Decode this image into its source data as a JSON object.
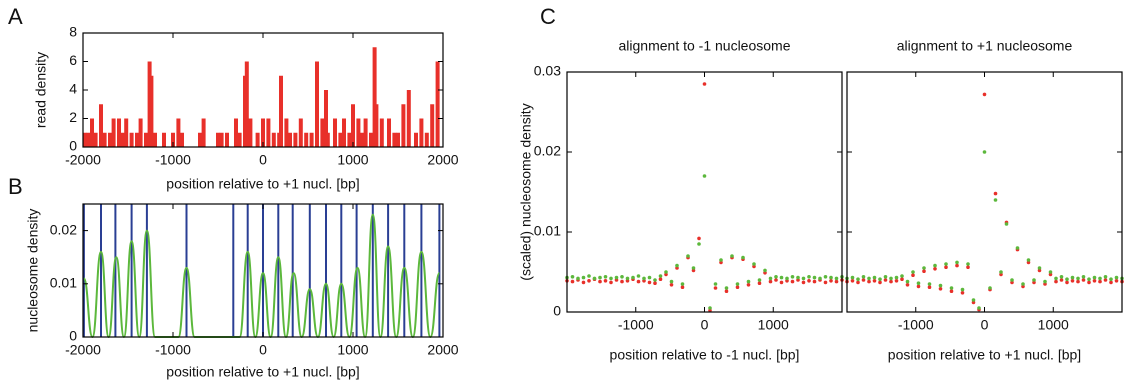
{
  "chart_data": [
    {
      "panel_label": "A",
      "type": "bar",
      "color": "#e8302a",
      "x": [
        -1980,
        -1940,
        -1900,
        -1860,
        -1800,
        -1760,
        -1700,
        -1660,
        -1600,
        -1560,
        -1520,
        -1460,
        -1400,
        -1360,
        -1300,
        -1260,
        -1240,
        -1200,
        -1100,
        -1000,
        -940,
        -900,
        -700,
        -660,
        -500,
        -460,
        -400,
        -300,
        -260,
        -200,
        -180,
        -140,
        -60,
        0,
        60,
        120,
        180,
        200,
        260,
        300,
        360,
        420,
        480,
        540,
        600,
        660,
        700,
        720,
        800,
        860,
        900,
        960,
        1000,
        1060,
        1100,
        1140,
        1200,
        1240,
        1260,
        1320,
        1400,
        1460,
        1500,
        1560,
        1620,
        1700,
        1760,
        1820,
        1880,
        1940
      ],
      "values": [
        1,
        1,
        2,
        1,
        3,
        1,
        1,
        2,
        2,
        1,
        2,
        1,
        1,
        2,
        1,
        6,
        5,
        1,
        1,
        1,
        2,
        1,
        1,
        2,
        1,
        1,
        1,
        2,
        1,
        5,
        6,
        2,
        1,
        2,
        2,
        1,
        1,
        5,
        2,
        1,
        1,
        2,
        1,
        1,
        6,
        2,
        4,
        1,
        2,
        1,
        2,
        1,
        3,
        2,
        1,
        2,
        1,
        7,
        3,
        2,
        2,
        1,
        1,
        3,
        4,
        1,
        2,
        1,
        3,
        6
      ],
      "xlim": [
        -2000,
        2000
      ],
      "xticks": [
        -2000,
        -1000,
        0,
        1000,
        2000
      ],
      "ylim": [
        0,
        8
      ],
      "yticks": [
        0,
        2,
        4,
        6,
        8
      ],
      "xlabel": "position relative to +1 nucl. [bp]",
      "ylabel": "read density"
    },
    {
      "panel_label": "B",
      "type": "line",
      "lines": {
        "color": "#2a3f94",
        "x": [
          -1990,
          -1800,
          -1640,
          -1460,
          -1290,
          -850,
          -330,
          -170,
          0,
          170,
          330,
          520,
          700,
          870,
          1040,
          1220,
          1390,
          1570,
          1760,
          1960
        ]
      },
      "curve": {
        "color": "#5cb83c",
        "x": [
          -1990,
          -1895,
          -1800,
          -1715,
          -1630,
          -1545,
          -1460,
          -1375,
          -1290,
          -1200,
          -940,
          -850,
          -760,
          -260,
          -170,
          -85,
          0,
          85,
          170,
          255,
          340,
          430,
          520,
          610,
          700,
          785,
          870,
          960,
          1050,
          1135,
          1220,
          1305,
          1390,
          1480,
          1570,
          1665,
          1760,
          1860,
          1960
        ],
        "values": [
          0.011,
          0,
          0.016,
          0,
          0.015,
          0,
          0.018,
          0,
          0.02,
          0,
          0,
          0.013,
          0,
          0,
          0.016,
          0,
          0.012,
          0,
          0.015,
          0,
          0.012,
          0,
          0.009,
          0,
          0.01,
          0,
          0.01,
          0,
          0.013,
          0,
          0.023,
          0,
          0.017,
          0,
          0.013,
          0,
          0.016,
          0,
          0.012
        ]
      },
      "xlim": [
        -2000,
        2000
      ],
      "xticks": [
        -2000,
        -1000,
        0,
        1000,
        2000
      ],
      "ylim": [
        0,
        0.025
      ],
      "yticks": [
        0,
        0.01,
        0.02
      ],
      "xlabel": "position relative to +1 nucl. [bp]",
      "ylabel": "nucleosome density"
    },
    {
      "panel_label": "C",
      "type": "scatter",
      "title": "alignment to -1 nucleosome",
      "x": [
        -2000,
        -1920,
        -1840,
        -1760,
        -1680,
        -1600,
        -1520,
        -1440,
        -1360,
        -1280,
        -1200,
        -1120,
        -1040,
        -960,
        -880,
        -800,
        -720,
        -640,
        -560,
        -480,
        -400,
        -320,
        -240,
        -160,
        -80,
        0,
        80,
        160,
        240,
        320,
        400,
        480,
        560,
        640,
        720,
        800,
        880,
        960,
        1040,
        1120,
        1200,
        1280,
        1360,
        1440,
        1520,
        1600,
        1680,
        1760,
        1840,
        1920,
        2000
      ],
      "series": [
        {
          "color": "#e8302a",
          "values": [
            0.0039,
            0.0038,
            0.004,
            0.0037,
            0.0039,
            0.0041,
            0.0038,
            0.0039,
            0.0037,
            0.004,
            0.0038,
            0.0039,
            0.0041,
            0.0038,
            0.0039,
            0.0037,
            0.0036,
            0.0041,
            0.0047,
            0.0034,
            0.0055,
            0.0031,
            0.0068,
            0.0052,
            0.0092,
            0.0285,
            0.0002,
            0.003,
            0.0062,
            0.0026,
            0.0068,
            0.0031,
            0.0066,
            0.0034,
            0.0057,
            0.0036,
            0.0049,
            0.0038,
            0.004,
            0.0037,
            0.0039,
            0.0038,
            0.004,
            0.0037,
            0.0039,
            0.0038,
            0.004,
            0.0037,
            0.0039,
            0.0038,
            0.004
          ]
        },
        {
          "color": "#5cb83c",
          "values": [
            0.0043,
            0.0044,
            0.0042,
            0.0043,
            0.0045,
            0.0042,
            0.0043,
            0.0044,
            0.0042,
            0.0043,
            0.0044,
            0.0042,
            0.0043,
            0.0045,
            0.0042,
            0.0043,
            0.004,
            0.0045,
            0.005,
            0.0038,
            0.0058,
            0.0035,
            0.007,
            0.0055,
            0.0085,
            0.017,
            0.0005,
            0.0035,
            0.0065,
            0.003,
            0.007,
            0.0035,
            0.0068,
            0.0038,
            0.006,
            0.004,
            0.0052,
            0.0042,
            0.0044,
            0.0043,
            0.0042,
            0.0044,
            0.0043,
            0.0042,
            0.0044,
            0.0043,
            0.0042,
            0.0044,
            0.0043,
            0.0042,
            0.0044
          ]
        }
      ],
      "xlim": [
        -2000,
        2000
      ],
      "xticks": [
        -1000,
        0,
        1000
      ],
      "ylim": [
        0,
        0.03
      ],
      "yticks": [
        0,
        0.01,
        0.02,
        0.03
      ],
      "xlabel": "position relative to -1 nucl. [bp]",
      "ylabel": "(scaled) nucleosome density"
    },
    {
      "type": "scatter",
      "title": "alignment to +1 nucleosome",
      "x": [
        -2000,
        -1920,
        -1840,
        -1760,
        -1680,
        -1600,
        -1520,
        -1440,
        -1360,
        -1280,
        -1200,
        -1120,
        -1040,
        -960,
        -880,
        -800,
        -720,
        -640,
        -560,
        -480,
        -400,
        -320,
        -240,
        -160,
        -80,
        0,
        80,
        160,
        240,
        320,
        400,
        480,
        560,
        640,
        720,
        800,
        880,
        960,
        1040,
        1120,
        1200,
        1280,
        1360,
        1440,
        1520,
        1600,
        1680,
        1760,
        1840,
        1920,
        2000
      ],
      "series": [
        {
          "color": "#e8302a",
          "values": [
            0.0038,
            0.0039,
            0.0037,
            0.004,
            0.0038,
            0.0039,
            0.0037,
            0.004,
            0.0038,
            0.0039,
            0.0041,
            0.0034,
            0.0046,
            0.0032,
            0.0051,
            0.0031,
            0.0054,
            0.0029,
            0.0056,
            0.0026,
            0.0058,
            0.0024,
            0.0056,
            0.0012,
            0.0003,
            0.0272,
            0.0028,
            0.0148,
            0.0047,
            0.0112,
            0.0037,
            0.0078,
            0.0032,
            0.0062,
            0.0037,
            0.0052,
            0.0035,
            0.0047,
            0.0038,
            0.004,
            0.0037,
            0.0039,
            0.0038,
            0.004,
            0.0037,
            0.0039,
            0.0038,
            0.004,
            0.0037,
            0.0039,
            0.0038
          ]
        },
        {
          "color": "#5cb83c",
          "values": [
            0.0042,
            0.0043,
            0.0041,
            0.0044,
            0.0042,
            0.0043,
            0.0041,
            0.0044,
            0.0042,
            0.0043,
            0.0045,
            0.0038,
            0.005,
            0.0036,
            0.0055,
            0.0035,
            0.0058,
            0.0033,
            0.006,
            0.003,
            0.0062,
            0.0028,
            0.006,
            0.0015,
            0.0005,
            0.02,
            0.003,
            0.014,
            0.005,
            0.011,
            0.004,
            0.008,
            0.0035,
            0.0065,
            0.004,
            0.0055,
            0.0038,
            0.005,
            0.0042,
            0.0044,
            0.0041,
            0.0043,
            0.0042,
            0.0044,
            0.0041,
            0.0043,
            0.0042,
            0.0044,
            0.0041,
            0.0043,
            0.0042
          ]
        }
      ],
      "xlim": [
        -2000,
        2000
      ],
      "xticks": [
        -1000,
        0,
        1000
      ],
      "ylim": [
        0,
        0.03
      ],
      "xlabel": "position relative to +1 nucl. [bp]"
    }
  ]
}
